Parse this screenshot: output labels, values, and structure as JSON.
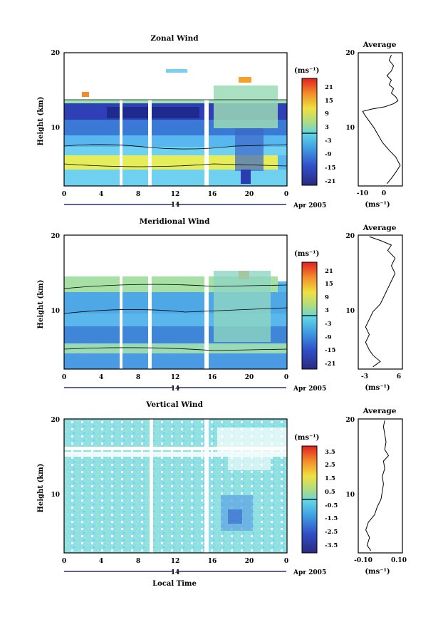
{
  "figure": {
    "xlabel": "Local Time",
    "ylabel": "Height (km)",
    "date_label": "Apr 2005",
    "day_label": "14",
    "time_ticks": [
      "0",
      "4",
      "8",
      "12",
      "16",
      "20",
      "0"
    ],
    "height_ticks": [
      "10",
      "20"
    ],
    "colorbar_unit": "(ms⁻¹)",
    "profile_unit": "(ms⁻¹)",
    "profile_title": "Average"
  },
  "chart_data": [
    {
      "type": "heatmap",
      "title": "Zonal Wind",
      "xlabel": "Local Time",
      "ylabel": "Height (km)",
      "xlim": [
        0,
        24
      ],
      "ylim": [
        2.5,
        20
      ],
      "colorbar": {
        "ticks": [
          "21",
          "15",
          "9",
          "3",
          "-3",
          "-9",
          "-15",
          "-21"
        ],
        "range": [
          -24,
          24
        ]
      },
      "profile": {
        "title": "Average",
        "xlim": [
          -13,
          7
        ],
        "xticks": [
          "-10",
          "0"
        ],
        "points": [
          [
            0,
            2.8
          ],
          [
            2,
            3.5
          ],
          [
            4,
            4.3
          ],
          [
            6,
            5.2
          ],
          [
            4,
            6.3
          ],
          [
            1,
            7.2
          ],
          [
            -2,
            8.2
          ],
          [
            -4,
            9.2
          ],
          [
            -6,
            10.2
          ],
          [
            -8,
            11.0
          ],
          [
            -10,
            11.8
          ],
          [
            -11,
            12.3
          ],
          [
            -7,
            12.6
          ],
          [
            -1,
            12.9
          ],
          [
            3,
            13.3
          ],
          [
            5,
            13.7
          ],
          [
            4,
            14.2
          ],
          [
            2,
            14.7
          ],
          [
            3,
            15.3
          ],
          [
            1,
            15.8
          ],
          [
            2,
            16.4
          ],
          [
            0,
            17.0
          ],
          [
            2,
            17.6
          ],
          [
            3,
            18.3
          ],
          [
            1,
            19.0
          ],
          [
            2,
            19.7
          ]
        ]
      }
    },
    {
      "type": "heatmap",
      "title": "Meridional Wind",
      "xlabel": "Local Time",
      "ylabel": "Height (km)",
      "xlim": [
        0,
        24
      ],
      "ylim": [
        2.5,
        20
      ],
      "colorbar": {
        "ticks": [
          "21",
          "15",
          "9",
          "3",
          "-3",
          "-9",
          "-15",
          "-21"
        ],
        "range": [
          -24,
          24
        ]
      },
      "profile": {
        "title": "Average",
        "xlim": [
          -5,
          7
        ],
        "xticks": [
          "-3",
          "6"
        ],
        "points": [
          [
            -1,
            2.8
          ],
          [
            1,
            3.5
          ],
          [
            -1,
            4.3
          ],
          [
            -2,
            5.0
          ],
          [
            -3,
            6.0
          ],
          [
            -2,
            7.0
          ],
          [
            -3,
            8.0
          ],
          [
            -2,
            9.0
          ],
          [
            -1,
            10.0
          ],
          [
            1,
            11.0
          ],
          [
            2,
            12.0
          ],
          [
            3,
            13.0
          ],
          [
            4,
            14.0
          ],
          [
            5,
            15.0
          ],
          [
            4,
            16.0
          ],
          [
            5,
            17.0
          ],
          [
            3,
            18.0
          ],
          [
            4,
            18.7
          ],
          [
            1,
            19.3
          ],
          [
            -2,
            19.8
          ]
        ]
      }
    },
    {
      "type": "heatmap",
      "title": "Vertical Wind",
      "xlabel": "Local Time",
      "ylabel": "Height (km)",
      "xlim": [
        0,
        24
      ],
      "ylim": [
        2.5,
        20
      ],
      "colorbar": {
        "ticks": [
          "3.5",
          "2.5",
          "1.5",
          "0.5",
          "-0.5",
          "-1.5",
          "-2.5",
          "-3.5"
        ],
        "range": [
          -4,
          4
        ]
      },
      "profile": {
        "title": "Average",
        "xlim": [
          -0.15,
          0.2
        ],
        "xticks": [
          "-0.10",
          "0.10"
        ],
        "points": [
          [
            -0.05,
            2.8
          ],
          [
            -0.08,
            3.5
          ],
          [
            -0.06,
            4.5
          ],
          [
            -0.09,
            5.5
          ],
          [
            -0.07,
            6.5
          ],
          [
            -0.02,
            7.5
          ],
          [
            0.0,
            8.5
          ],
          [
            0.03,
            9.5
          ],
          [
            0.04,
            10.5
          ],
          [
            0.05,
            11.5
          ],
          [
            0.04,
            12.5
          ],
          [
            0.06,
            13.5
          ],
          [
            0.05,
            14.5
          ],
          [
            0.09,
            15.2
          ],
          [
            0.06,
            16.0
          ],
          [
            0.07,
            17.0
          ],
          [
            0.06,
            18.0
          ],
          [
            0.05,
            19.0
          ],
          [
            0.06,
            19.8
          ]
        ]
      }
    }
  ]
}
